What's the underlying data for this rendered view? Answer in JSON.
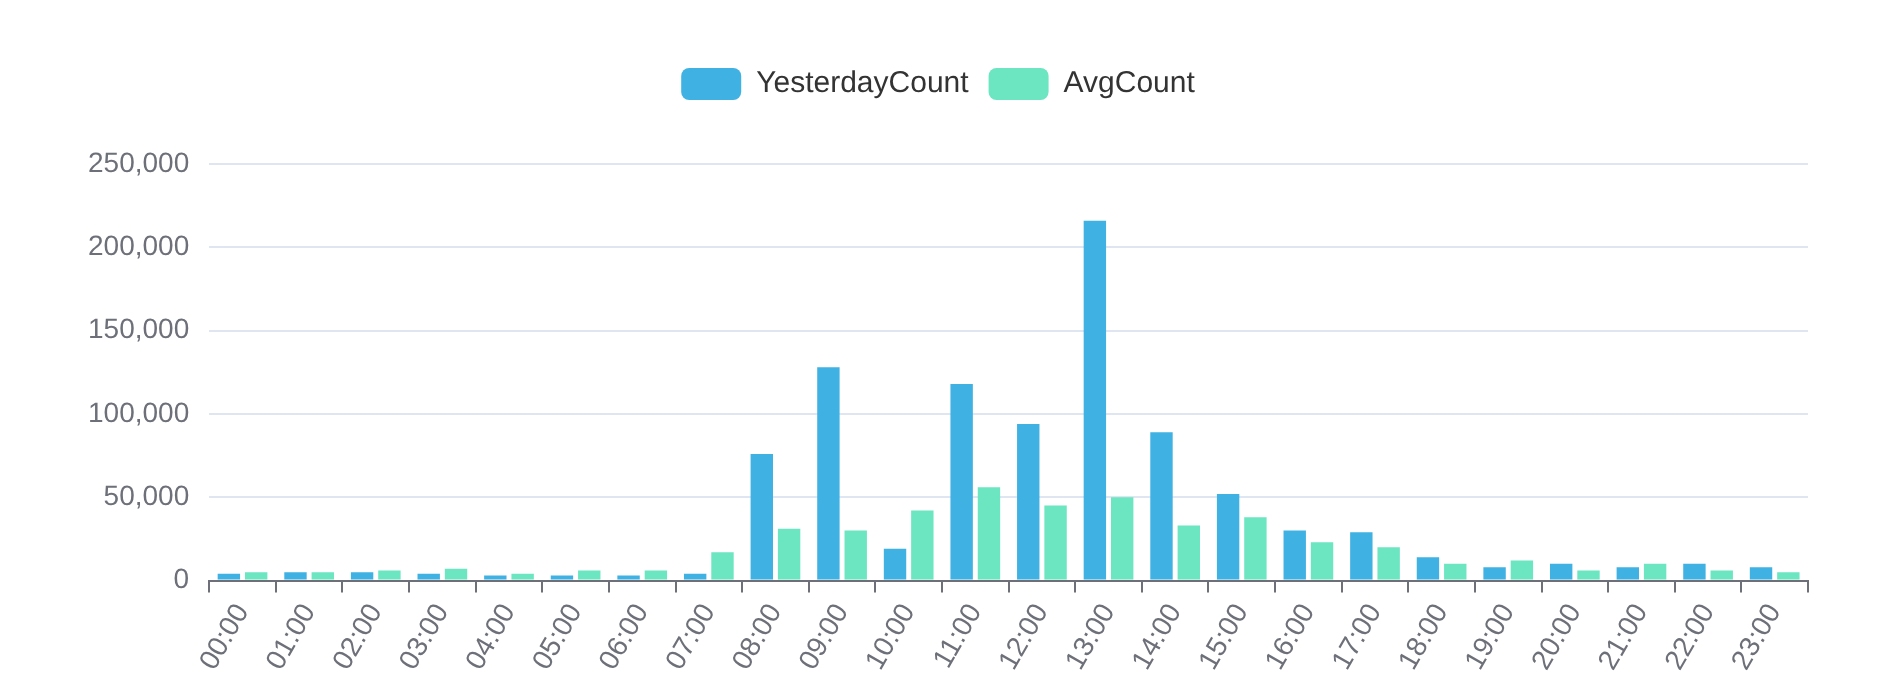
{
  "chart_data": {
    "type": "bar",
    "categories": [
      "00:00",
      "01:00",
      "02:00",
      "03:00",
      "04:00",
      "05:00",
      "06:00",
      "07:00",
      "08:00",
      "09:00",
      "10:00",
      "11:00",
      "12:00",
      "13:00",
      "14:00",
      "15:00",
      "16:00",
      "17:00",
      "18:00",
      "19:00",
      "20:00",
      "21:00",
      "22:00",
      "23:00"
    ],
    "series": [
      {
        "name": "YesterdayCount",
        "color": "#3fb1e3",
        "values": [
          4000,
          5000,
          5000,
          4000,
          3000,
          3000,
          3000,
          4000,
          76000,
          128000,
          19000,
          118000,
          94000,
          216000,
          89000,
          52000,
          30000,
          29000,
          14000,
          8000,
          10000,
          8000,
          10000,
          8000
        ]
      },
      {
        "name": "AvgCount",
        "color": "#6be6c1",
        "values": [
          5000,
          5000,
          6000,
          7000,
          4000,
          6000,
          6000,
          17000,
          31000,
          30000,
          42000,
          56000,
          45000,
          50000,
          33000,
          38000,
          23000,
          20000,
          10000,
          12000,
          6000,
          10000,
          6000,
          5000
        ]
      }
    ],
    "ylim": [
      0,
      250000
    ],
    "yticks": [
      0,
      {
        "value": 50000,
        "label": "50,000"
      },
      {
        "value": 100000,
        "label": "100,000"
      },
      {
        "value": 150000,
        "label": "150,000"
      },
      {
        "value": 200000,
        "label": "200,000"
      },
      {
        "value": 250000,
        "label": "250,000"
      }
    ],
    "grid": "y",
    "legend": "top"
  }
}
